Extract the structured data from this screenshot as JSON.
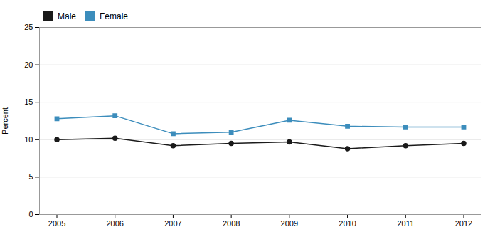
{
  "chart_data": {
    "type": "line",
    "x": [
      2005,
      2006,
      2007,
      2008,
      2009,
      2010,
      2011,
      2012
    ],
    "series": [
      {
        "name": "Male",
        "color": "#1a1a1a",
        "marker": "circle",
        "values": [
          10.0,
          10.2,
          9.2,
          9.5,
          9.7,
          8.8,
          9.2,
          9.5
        ]
      },
      {
        "name": "Female",
        "color": "#3c8dbc",
        "marker": "square",
        "values": [
          12.8,
          13.2,
          10.8,
          11.0,
          12.6,
          11.8,
          11.7,
          11.7
        ]
      }
    ],
    "ylabel": "Percent",
    "xlim": [
      2004.7,
      2012.3
    ],
    "xticks": [
      2005,
      2006,
      2007,
      2008,
      2009,
      2010,
      2011,
      2012
    ],
    "ylim": [
      0,
      25
    ],
    "yticks": [
      0,
      5,
      10,
      15,
      20,
      25
    ],
    "grid": true,
    "legend": "top"
  }
}
